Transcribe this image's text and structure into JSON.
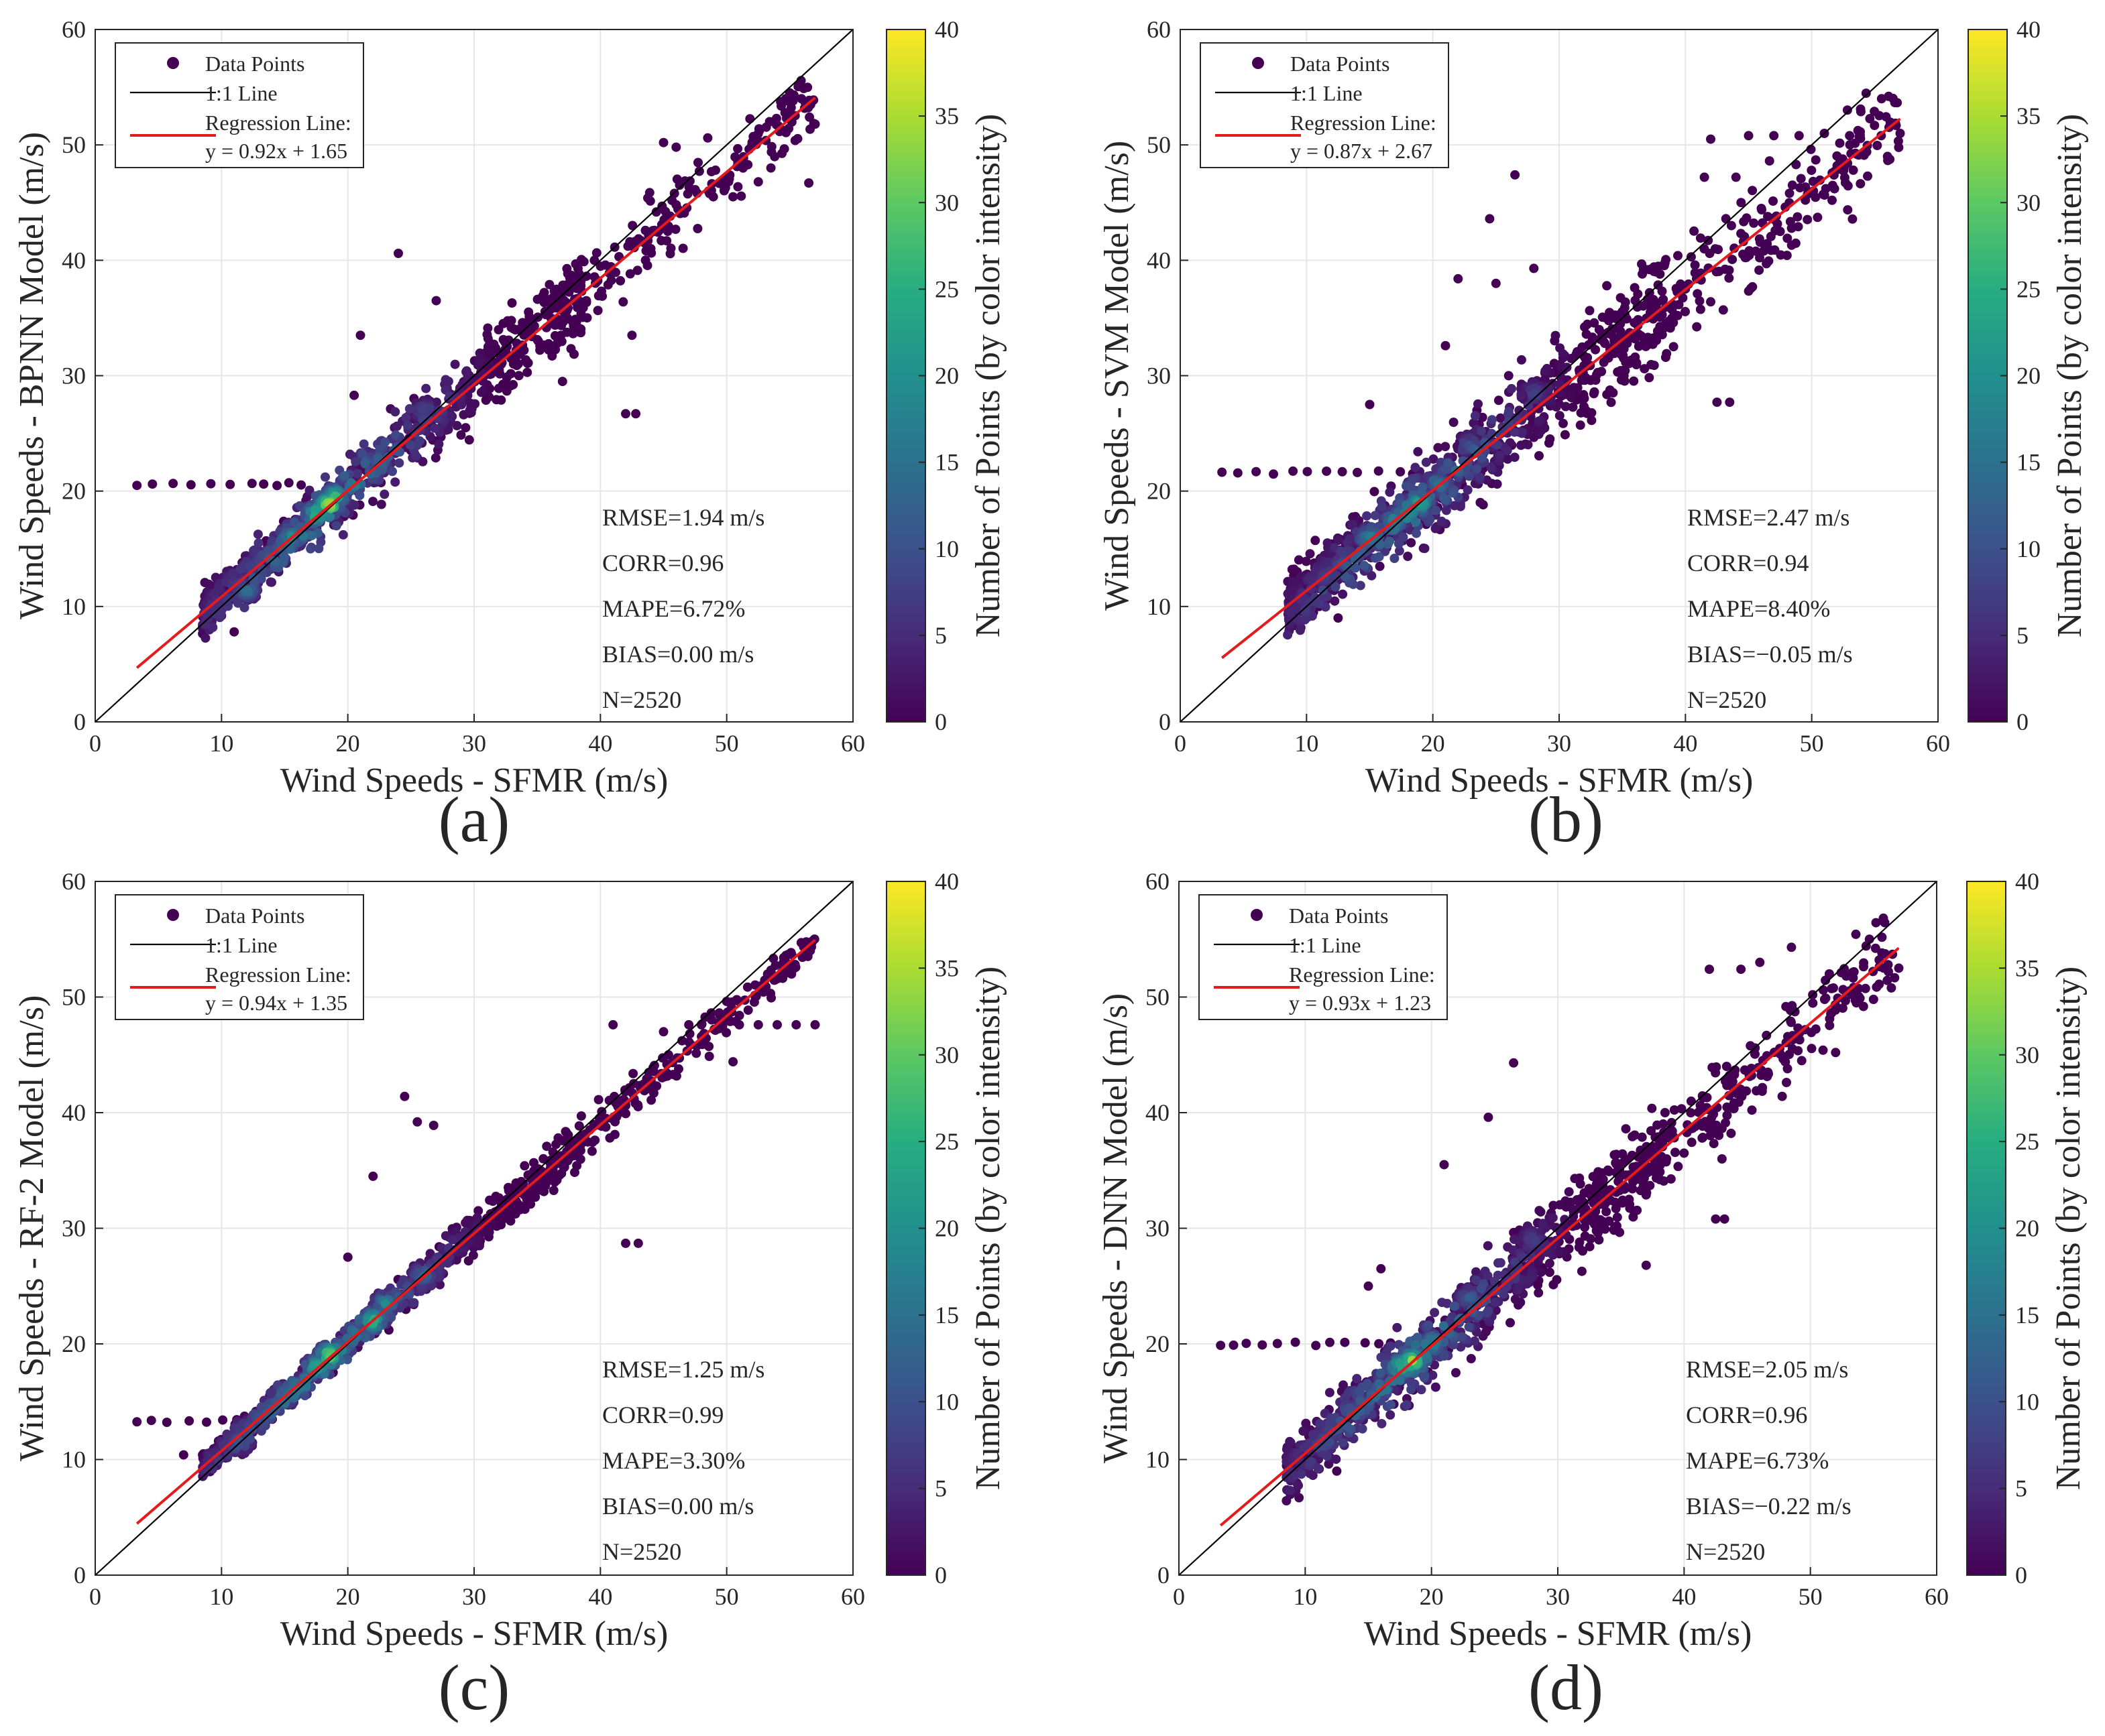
{
  "colorbar": {
    "label": "Number of Points (by color intensity)",
    "min": 0,
    "max": 40,
    "ticks": [
      "0",
      "5",
      "10",
      "15",
      "20",
      "25",
      "30",
      "35",
      "40"
    ],
    "stops": [
      "#440154",
      "#472c7a",
      "#3b518b",
      "#2c718e",
      "#21908d",
      "#27ad81",
      "#5cc863",
      "#aadc32",
      "#fde725"
    ]
  },
  "colors": {
    "one_to_one": "#000000",
    "regression": "#e41a1c",
    "axis": "#262626",
    "grid": "#e6e6e6"
  },
  "legend": {
    "data_points": "Data Points",
    "one_to_one": "1:1 Line",
    "regression": "Regression Line:"
  },
  "chart_data": [
    {
      "id": "a",
      "type": "scatter",
      "panel_label": "(a)",
      "xlabel": "Wind Speeds - SFMR (m/s)",
      "ylabel": "Wind Speeds - BPNN Model (m/s)",
      "xlim": [
        0,
        60
      ],
      "ylim": [
        0,
        60
      ],
      "xticks": [
        "0",
        "10",
        "20",
        "30",
        "40",
        "50",
        "60"
      ],
      "yticks": [
        "0",
        "10",
        "20",
        "30",
        "40",
        "50",
        "60"
      ],
      "regression": {
        "slope": 0.92,
        "intercept": 1.65,
        "x_range": [
          3.3,
          57
        ],
        "equation": "y = 0.92x + 1.65"
      },
      "stats": [
        "RMSE=1.94 m/s",
        "CORR=0.96",
        "MAPE=6.72%",
        "BIAS=0.00 m/s",
        "N=2520"
      ],
      "plateau": {
        "y": 20.6,
        "x_start": 3.3,
        "x_end": 17.5
      },
      "outliers": [
        [
          24,
          40.6
        ],
        [
          21,
          33.5
        ],
        [
          20.5,
          28.3
        ],
        [
          42,
          26.7
        ],
        [
          42.8,
          26.7
        ],
        [
          37,
          29.5
        ],
        [
          43.5,
          41.5
        ],
        [
          48.5,
          50.6
        ],
        [
          52,
          50
        ],
        [
          53.5,
          48
        ],
        [
          56.5,
          46.7
        ],
        [
          57,
          51.8
        ],
        [
          45,
          50.2
        ],
        [
          46,
          49.8
        ],
        [
          27,
          36.5
        ],
        [
          33,
          36.3
        ],
        [
          11,
          7.8
        ],
        [
          42.5,
          33.5
        ],
        [
          50.5,
          45.5
        ],
        [
          52.5,
          46.8
        ]
      ],
      "hotspots": [
        [
          18.5,
          18.8,
          38
        ],
        [
          17.5,
          18,
          30
        ],
        [
          15.5,
          16,
          20
        ],
        [
          19,
          19.5,
          28
        ],
        [
          12,
          11.5,
          16
        ],
        [
          22.5,
          22.5,
          12
        ],
        [
          26,
          27,
          8
        ]
      ],
      "spread": 1.6,
      "seed": 11
    },
    {
      "id": "b",
      "type": "scatter",
      "panel_label": "(b)",
      "xlabel": "Wind Speeds - SFMR (m/s)",
      "ylabel": "Wind Speeds - SVM Model (m/s)",
      "xlim": [
        0,
        60
      ],
      "ylim": [
        0,
        60
      ],
      "xticks": [
        "0",
        "10",
        "20",
        "30",
        "40",
        "50",
        "60"
      ],
      "yticks": [
        "0",
        "10",
        "20",
        "30",
        "40",
        "50",
        "60"
      ],
      "regression": {
        "slope": 0.87,
        "intercept": 2.67,
        "x_range": [
          3.3,
          57
        ],
        "equation": "y = 0.87x + 2.67"
      },
      "stats": [
        "RMSE=2.47 m/s",
        "CORR=0.94",
        "MAPE=8.40%",
        "BIAS=−0.05 m/s",
        "N=2520"
      ],
      "plateau": {
        "y": 21.6,
        "x_start": 3.3,
        "x_end": 18.5
      },
      "outliers": [
        [
          24.5,
          43.6
        ],
        [
          26.5,
          47.4
        ],
        [
          25,
          38
        ],
        [
          22,
          38.4
        ],
        [
          28,
          39.3
        ],
        [
          21,
          32.6
        ],
        [
          15,
          27.5
        ],
        [
          11,
          10
        ],
        [
          12.5,
          9
        ],
        [
          42.5,
          27.7
        ],
        [
          43.5,
          27.7
        ],
        [
          42,
          50.5
        ],
        [
          44,
          47.2
        ],
        [
          41.5,
          47.2
        ],
        [
          45,
          50.8
        ],
        [
          47,
          50.8
        ],
        [
          49,
          50.8
        ],
        [
          51,
          51
        ],
        [
          53,
          50.8
        ],
        [
          55.5,
          50.8
        ],
        [
          56,
          49
        ],
        [
          57,
          51
        ],
        [
          43,
          35.7
        ],
        [
          42,
          36.4
        ],
        [
          26,
          30
        ]
      ],
      "hotspots": [
        [
          19,
          19,
          26
        ],
        [
          17,
          17.5,
          20
        ],
        [
          15,
          16,
          18
        ],
        [
          20.5,
          20.5,
          16
        ],
        [
          23,
          24,
          10
        ],
        [
          11.5,
          12.5,
          8
        ],
        [
          28,
          28.5,
          8
        ]
      ],
      "spread": 2.3,
      "seed": 23
    },
    {
      "id": "c",
      "type": "scatter",
      "panel_label": "(c)",
      "xlabel": "Wind Speeds - SFMR (m/s)",
      "ylabel": "Wind Speeds - RF-2 Model (m/s)",
      "xlim": [
        0,
        60
      ],
      "ylim": [
        0,
        60
      ],
      "xticks": [
        "0",
        "10",
        "20",
        "30",
        "40",
        "50",
        "60"
      ],
      "yticks": [
        "0",
        "10",
        "20",
        "30",
        "40",
        "50",
        "60"
      ],
      "regression": {
        "slope": 0.94,
        "intercept": 1.35,
        "x_range": [
          3.3,
          57
        ],
        "equation": "y = 0.94x + 1.35"
      },
      "stats": [
        "RMSE=1.25 m/s",
        "CORR=0.99",
        "MAPE=3.30%",
        "BIAS=0.00 m/s",
        "N=2520"
      ],
      "plateau": {
        "y": 13.3,
        "x_start": 3.3,
        "x_end": 12
      },
      "outliers": [
        [
          24.5,
          41.4
        ],
        [
          25.5,
          39.2
        ],
        [
          26.8,
          38.9
        ],
        [
          22,
          34.5
        ],
        [
          20,
          27.5
        ],
        [
          42,
          28.7
        ],
        [
          43,
          28.7
        ],
        [
          41,
          47.6
        ],
        [
          47,
          47.6
        ],
        [
          48,
          47.6
        ],
        [
          49.5,
          47.6
        ],
        [
          51,
          47.6
        ],
        [
          52.5,
          47.6
        ],
        [
          54,
          47.6
        ],
        [
          55.5,
          47.6
        ],
        [
          57,
          47.6
        ],
        [
          50.5,
          44.4
        ],
        [
          45,
          47
        ],
        [
          7,
          10.4
        ],
        [
          8.5,
          10.4
        ],
        [
          34,
          35.4
        ]
      ],
      "hotspots": [
        [
          18.5,
          19,
          34
        ],
        [
          17.5,
          18,
          26
        ],
        [
          22,
          22,
          28
        ],
        [
          23,
          23.5,
          20
        ],
        [
          15,
          15.5,
          16
        ],
        [
          26,
          26,
          14
        ],
        [
          11.5,
          11.5,
          12
        ]
      ],
      "spread": 0.9,
      "seed": 37
    },
    {
      "id": "d",
      "type": "scatter",
      "panel_label": "(d)",
      "xlabel": "Wind Speeds - SFMR (m/s)",
      "ylabel": "Wind Speeds - DNN Model (m/s)",
      "xlim": [
        0,
        60
      ],
      "ylim": [
        0,
        60
      ],
      "xticks": [
        "0",
        "10",
        "20",
        "30",
        "40",
        "50",
        "60"
      ],
      "yticks": [
        "0",
        "10",
        "20",
        "30",
        "40",
        "50",
        "60"
      ],
      "regression": {
        "slope": 0.93,
        "intercept": 1.23,
        "x_range": [
          3.3,
          57
        ],
        "equation": "y = 0.93x + 1.23"
      },
      "stats": [
        "RMSE=2.05 m/s",
        "CORR=0.96",
        "MAPE=6.73%",
        "BIAS=−0.22 m/s",
        "N=2520"
      ],
      "plateau": {
        "y": 20,
        "x_start": 3.3,
        "x_end": 18
      },
      "outliers": [
        [
          26.5,
          44.3
        ],
        [
          24.5,
          39.6
        ],
        [
          21,
          35.5
        ],
        [
          42.5,
          30.8
        ],
        [
          43.2,
          30.8
        ],
        [
          42,
          52.4
        ],
        [
          44.5,
          52.4
        ],
        [
          46,
          53
        ],
        [
          48.5,
          54.3
        ],
        [
          51.5,
          52
        ],
        [
          53.5,
          50.4
        ],
        [
          55,
          49.8
        ],
        [
          56.5,
          53.7
        ],
        [
          57,
          52.5
        ],
        [
          51,
          45.4
        ],
        [
          52,
          45.2
        ],
        [
          12.5,
          9
        ],
        [
          37,
          26.8
        ],
        [
          43,
          36
        ],
        [
          40,
          36.5
        ],
        [
          15,
          25
        ],
        [
          16,
          26.5
        ]
      ],
      "hotspots": [
        [
          18.5,
          18.5,
          36
        ],
        [
          17.5,
          18,
          28
        ],
        [
          20,
          20,
          20
        ],
        [
          14.5,
          14.5,
          12
        ],
        [
          23,
          24,
          12
        ],
        [
          11.5,
          11.5,
          10
        ],
        [
          28,
          29,
          8
        ]
      ],
      "spread": 1.9,
      "seed": 51
    }
  ]
}
